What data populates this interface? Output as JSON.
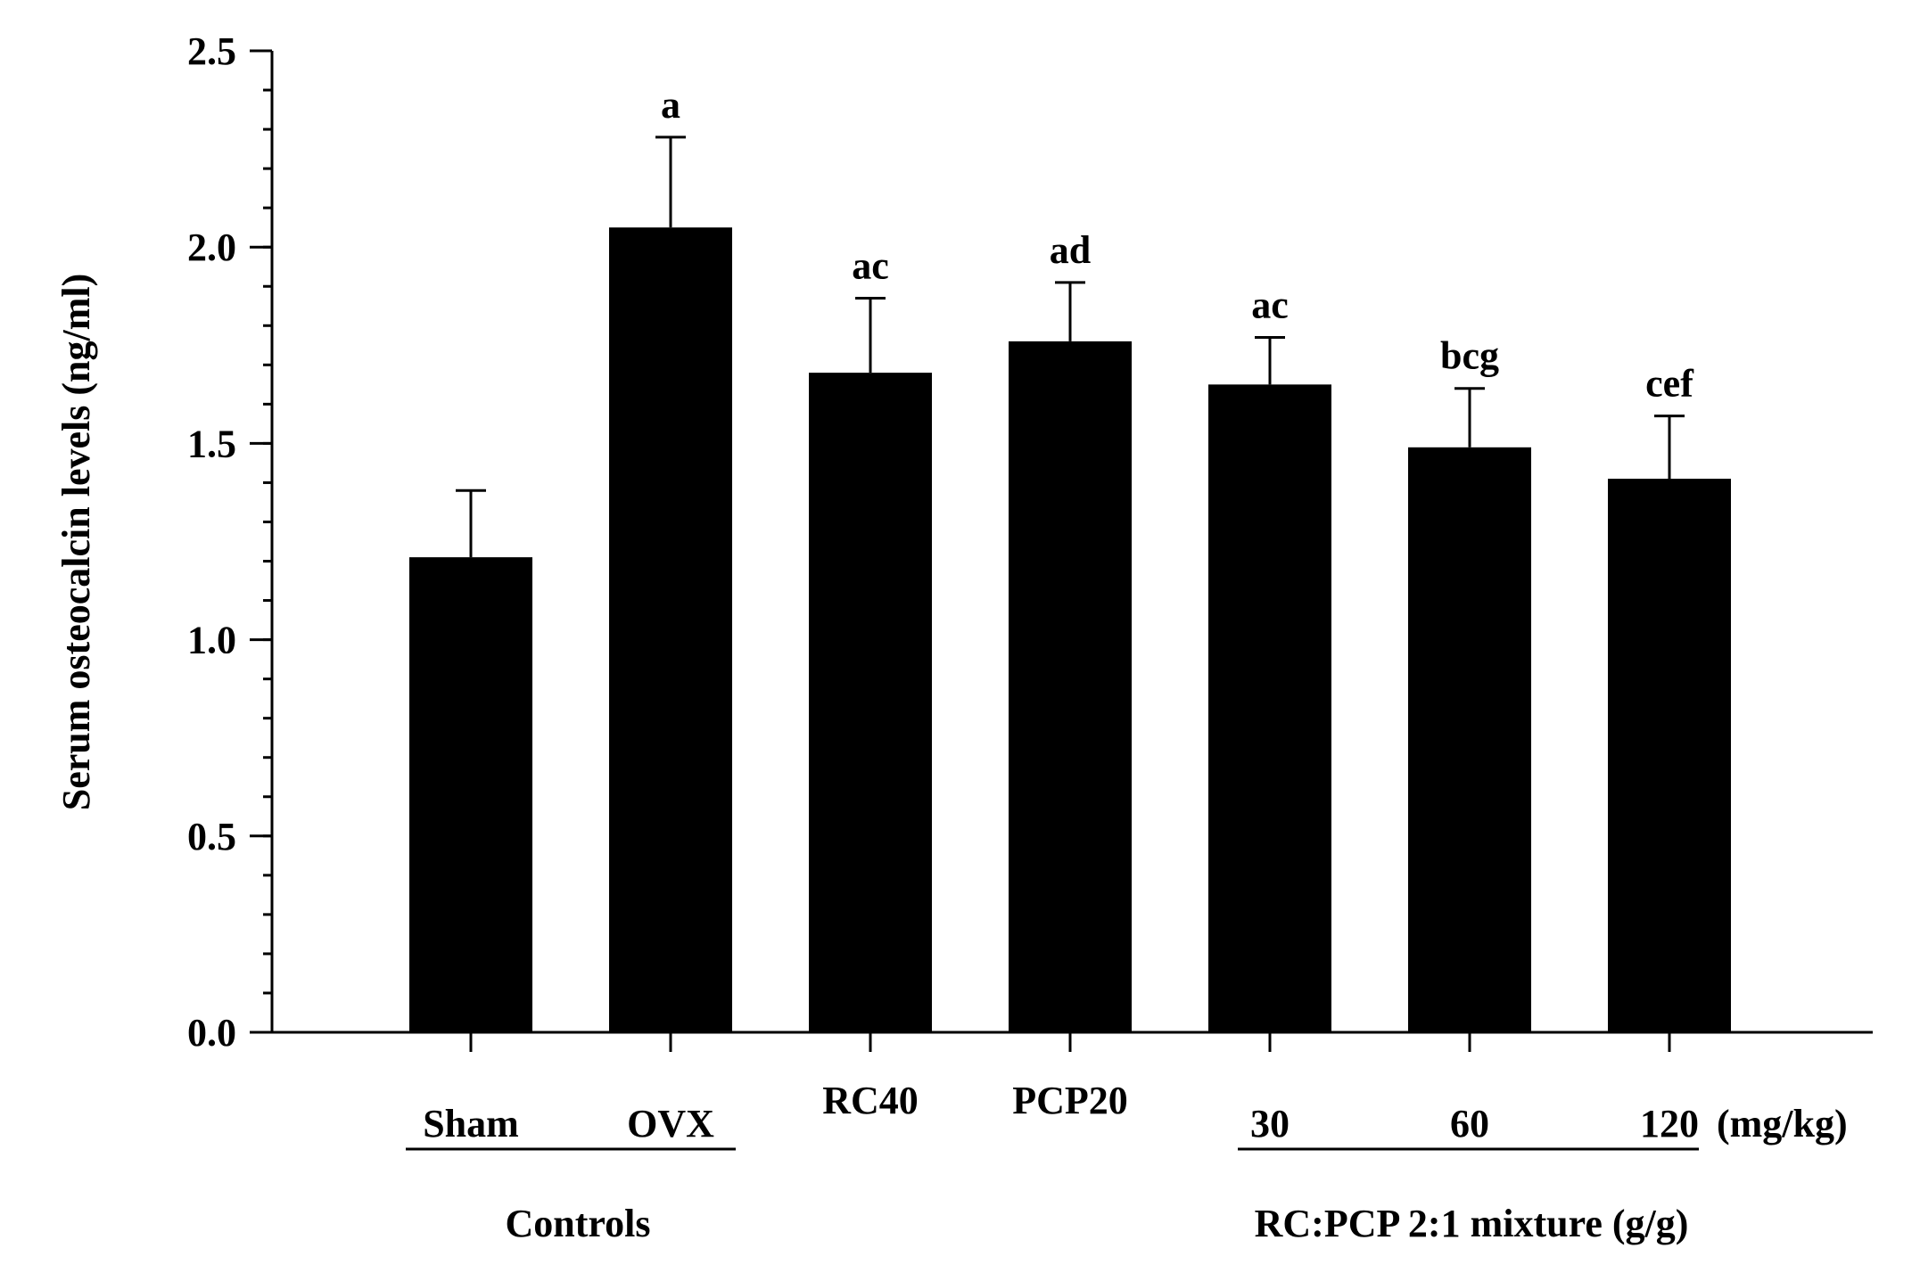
{
  "chart_data": {
    "type": "bar",
    "title": "",
    "xlabel": "",
    "ylabel": "Serum osteocalcin levels (ng/ml)",
    "ylim": [
      0,
      2.5
    ],
    "yticks": [
      "0.0",
      "0.5",
      "1.0",
      "1.5",
      "2.0",
      "2.5"
    ],
    "y_minor_step": 0.1,
    "grid": false,
    "legend": "none",
    "bar_color": "#000000",
    "categories": [
      "Sham",
      "OVX",
      "RC40",
      "PCP20",
      "30",
      "60",
      "120"
    ],
    "values": [
      1.21,
      2.05,
      1.68,
      1.76,
      1.65,
      1.49,
      1.41
    ],
    "errors": [
      0.17,
      0.23,
      0.19,
      0.15,
      0.12,
      0.15,
      0.16
    ],
    "annotations": [
      "",
      "a",
      "ac",
      "ad",
      "ac",
      "bcg",
      "cef"
    ],
    "unit_label": "(mg/kg)",
    "groups": [
      {
        "label": "Controls"
      },
      {
        "label": "RC:PCP 2:1 mixture (g/g)"
      }
    ]
  }
}
